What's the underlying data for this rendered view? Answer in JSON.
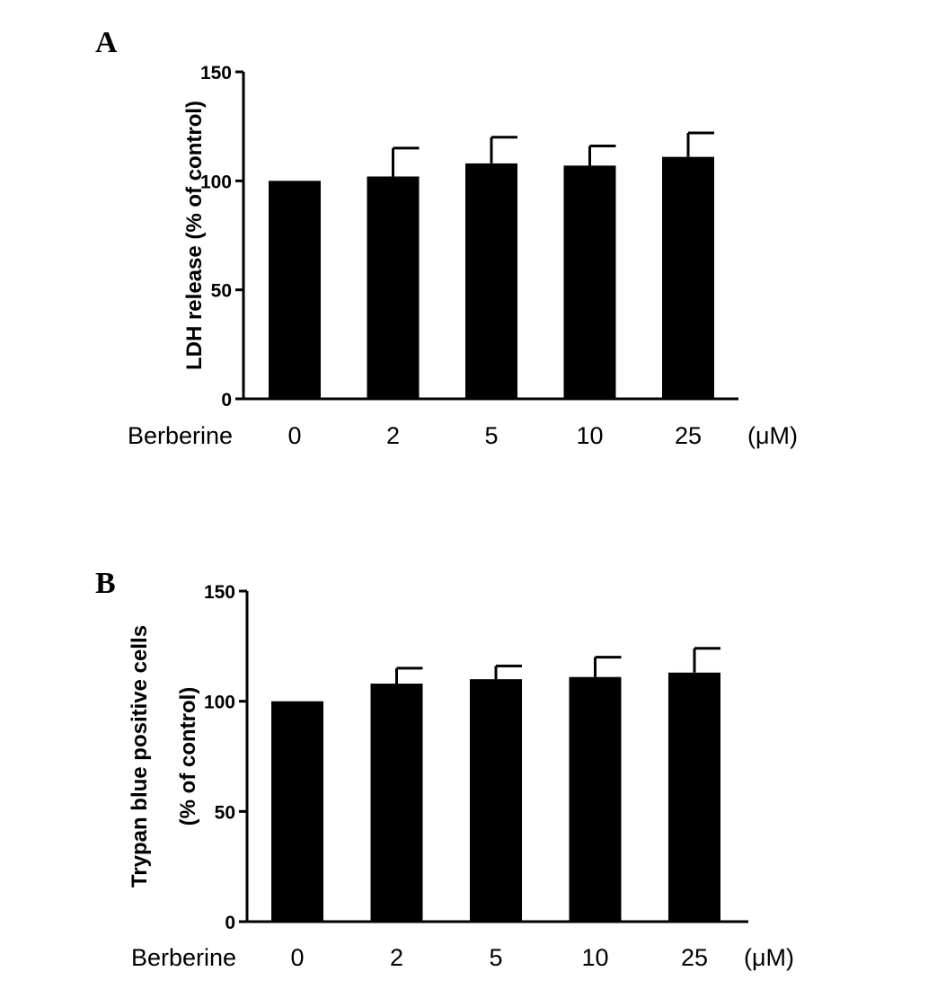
{
  "chart_data": [
    {
      "panel": "A",
      "type": "bar",
      "group_label": "Berberine",
      "unit_label": "(μM)",
      "categories": [
        "0",
        "2",
        "5",
        "10",
        "25"
      ],
      "values": [
        100,
        102,
        108,
        107,
        111
      ],
      "errors": [
        0,
        13,
        12,
        9,
        11
      ],
      "ylabel_lines": [
        "LDH release (% of control)"
      ],
      "ylim": [
        0,
        150
      ],
      "yticks": [
        "0",
        "50",
        "100",
        "150"
      ],
      "bar_color": "#000000"
    },
    {
      "panel": "B",
      "type": "bar",
      "group_label": "Berberine",
      "unit_label": "(μM)",
      "categories": [
        "0",
        "2",
        "5",
        "10",
        "25"
      ],
      "values": [
        100,
        108,
        110,
        111,
        113
      ],
      "errors": [
        0,
        7,
        6,
        9,
        11
      ],
      "ylabel_lines": [
        "Trypan blue positive cells",
        "(% of control)"
      ],
      "ylim": [
        0,
        150
      ],
      "yticks": [
        "0",
        "50",
        "100",
        "150"
      ],
      "bar_color": "#000000"
    }
  ]
}
